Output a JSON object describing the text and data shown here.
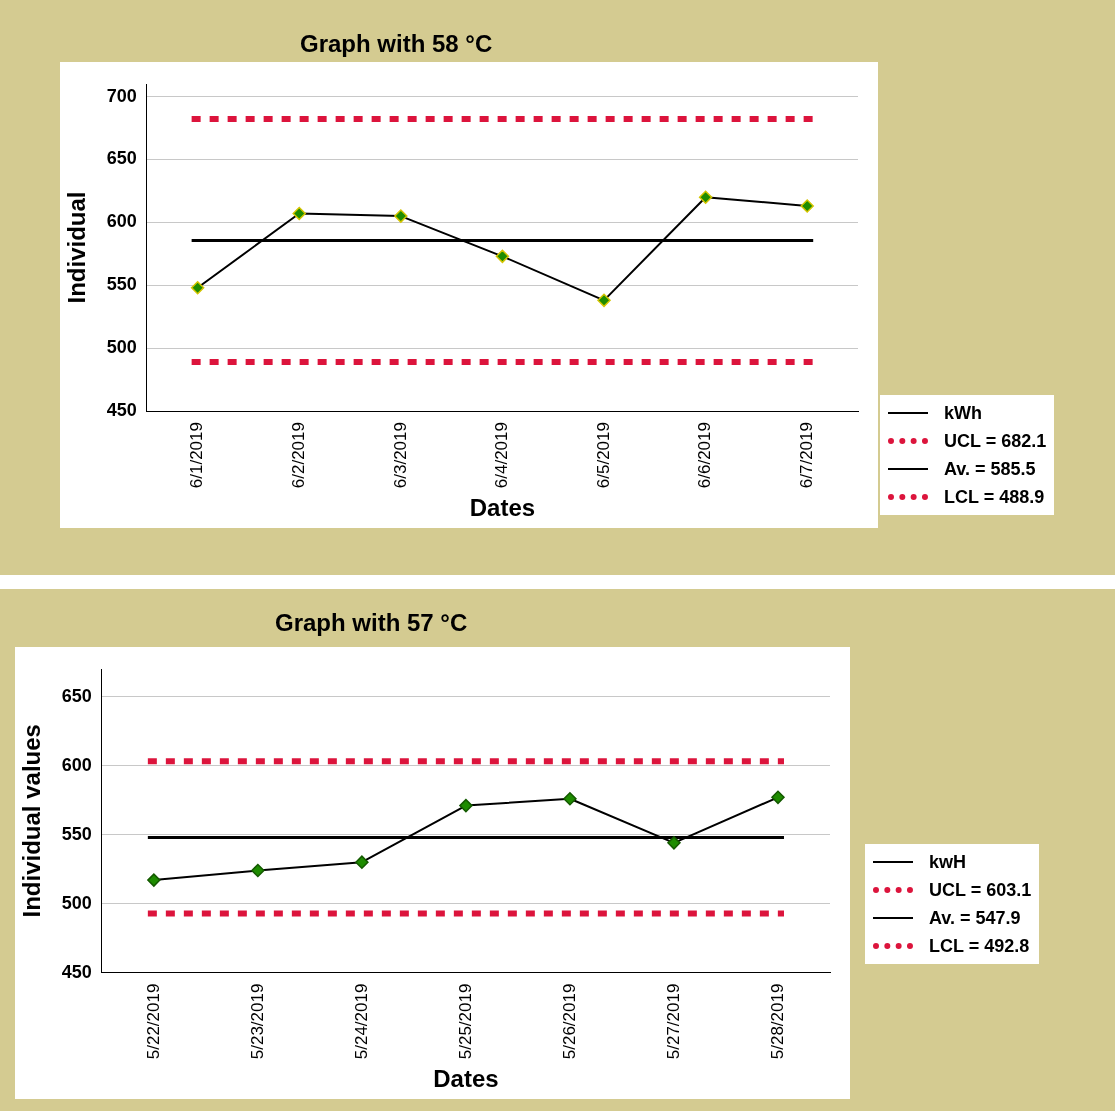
{
  "chart_data": [
    {
      "type": "line",
      "title": "Graph with 58 °C",
      "xlabel": "Dates",
      "ylabel": "Individual",
      "categories": [
        "6/1/2019",
        "6/2/2019",
        "6/3/2019",
        "6/4/2019",
        "6/5/2019",
        "6/6/2019",
        "6/7/2019"
      ],
      "series": [
        {
          "name": "kWh",
          "color": "#000000",
          "values": [
            548,
            607,
            605,
            573,
            538,
            620,
            613
          ]
        }
      ],
      "ylim": [
        450,
        710
      ],
      "yticks": [
        450,
        500,
        550,
        600,
        650,
        700
      ],
      "grid": "y",
      "legend": "bottom right",
      "marker": "diamond",
      "line_style": "solid",
      "ref_lines": [
        {
          "axis": "y",
          "value": 682.1,
          "label": "UCL = 682.1",
          "color": "#dc143c",
          "line_style": "dotted"
        },
        {
          "axis": "y",
          "value": 585.5,
          "label": "Av. = 585.5",
          "color": "#000000",
          "line_style": "solid"
        },
        {
          "axis": "y",
          "value": 488.9,
          "label": "LCL = 488.9",
          "color": "#dc143c",
          "line_style": "dotted"
        }
      ]
    },
    {
      "type": "line",
      "title": "Graph with 57 °C",
      "xlabel": "Dates",
      "ylabel": "Individual values",
      "categories": [
        "5/22/2019",
        "5/23/2019",
        "5/24/2019",
        "5/25/2019",
        "5/26/2019",
        "5/27/2019",
        "5/28/2019"
      ],
      "series": [
        {
          "name": "kwH",
          "color": "#000000",
          "values": [
            517,
            524,
            530,
            571,
            576,
            544,
            577
          ]
        }
      ],
      "ylim": [
        450,
        670
      ],
      "yticks": [
        450,
        500,
        550,
        600,
        650
      ],
      "grid": "y",
      "legend": "right",
      "marker": "diamond",
      "line_style": "solid",
      "ref_lines": [
        {
          "axis": "y",
          "value": 603.1,
          "label": "UCL = 603.1",
          "color": "#dc143c",
          "line_style": "dotted"
        },
        {
          "axis": "y",
          "value": 547.9,
          "label": "Av. = 547.9",
          "color": "#000000",
          "line_style": "solid"
        },
        {
          "axis": "y",
          "value": 492.8,
          "label": "LCL = 492.8",
          "color": "#dc143c",
          "line_style": "dotted"
        }
      ]
    }
  ]
}
